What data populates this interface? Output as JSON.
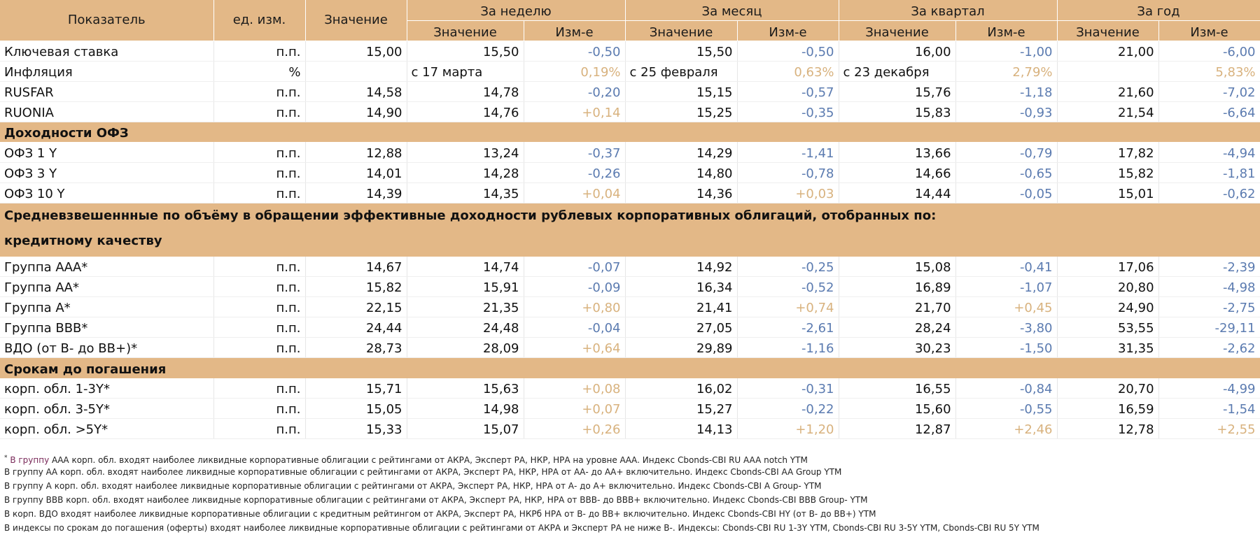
{
  "header": {
    "indicator": "Показатель",
    "unit": "ед. изм.",
    "value": "Значение",
    "groups": [
      "За неделю",
      "За месяц",
      "За квартал",
      "За год"
    ],
    "sub_value": "Значение",
    "sub_change": "Изм-е"
  },
  "rows_top": [
    {
      "name": "Ключевая ставка",
      "unit": "п.п.",
      "value": "15,00",
      "w_val": "15,50",
      "w_chg": "-0,50",
      "w_sign": "neg",
      "m_val": "15,50",
      "m_chg": "-0,50",
      "m_sign": "neg",
      "q_val": "16,00",
      "q_chg": "-1,00",
      "q_sign": "neg",
      "y_val": "21,00",
      "y_chg": "-6,00",
      "y_sign": "neg"
    },
    {
      "name": "Инфляция",
      "unit": "%",
      "value": "",
      "w_val": "с 17 марта",
      "w_chg": "0,19%",
      "w_sign": "pos",
      "m_val": "с 25 февраля",
      "m_chg": "0,63%",
      "m_sign": "pos",
      "q_val": "с 23 декабря",
      "q_chg": "2,79%",
      "q_sign": "pos",
      "y_val": "",
      "y_chg": "5,83%",
      "y_sign": "pos",
      "text_values": true
    },
    {
      "name": "RUSFAR",
      "unit": "п.п.",
      "value": "14,58",
      "w_val": "14,78",
      "w_chg": "-0,20",
      "w_sign": "neg",
      "m_val": "15,15",
      "m_chg": "-0,57",
      "m_sign": "neg",
      "q_val": "15,76",
      "q_chg": "-1,18",
      "q_sign": "neg",
      "y_val": "21,60",
      "y_chg": "-7,02",
      "y_sign": "neg"
    },
    {
      "name": "RUONIA",
      "unit": "п.п.",
      "value": "14,90",
      "w_val": "14,76",
      "w_chg": "+0,14",
      "w_sign": "pos",
      "m_val": "15,25",
      "m_chg": "-0,35",
      "m_sign": "neg",
      "q_val": "15,83",
      "q_chg": "-0,93",
      "q_sign": "neg",
      "y_val": "21,54",
      "y_chg": "-6,64",
      "y_sign": "neg"
    }
  ],
  "section_ofz": "Доходности ОФЗ",
  "rows_ofz": [
    {
      "name": "ОФЗ 1 Y",
      "unit": "п.п.",
      "value": "12,88",
      "w_val": "13,24",
      "w_chg": "-0,37",
      "w_sign": "neg",
      "m_val": "14,29",
      "m_chg": "-1,41",
      "m_sign": "neg",
      "q_val": "13,66",
      "q_chg": "-0,79",
      "q_sign": "neg",
      "y_val": "17,82",
      "y_chg": "-4,94",
      "y_sign": "neg"
    },
    {
      "name": "ОФЗ 3 Y",
      "unit": "п.п.",
      "value": "14,01",
      "w_val": "14,28",
      "w_chg": "-0,26",
      "w_sign": "neg",
      "m_val": "14,80",
      "m_chg": "-0,78",
      "m_sign": "neg",
      "q_val": "14,66",
      "q_chg": "-0,65",
      "q_sign": "neg",
      "y_val": "15,82",
      "y_chg": "-1,81",
      "y_sign": "neg"
    },
    {
      "name": "ОФЗ 10 Y",
      "unit": "п.п.",
      "value": "14,39",
      "w_val": "14,35",
      "w_chg": "+0,04",
      "w_sign": "pos",
      "m_val": "14,36",
      "m_chg": "+0,03",
      "m_sign": "pos",
      "q_val": "14,44",
      "q_chg": "-0,05",
      "q_sign": "neg",
      "y_val": "15,01",
      "y_chg": "-0,62",
      "y_sign": "neg"
    }
  ],
  "section_corp_line1": "Средневзвешеннные по объёму в обращении эффективные доходности рублевых корпоративных облигаций, отобранных по:",
  "section_corp_line2": "кредитному качеству",
  "rows_credit": [
    {
      "name": "Группа ААА*",
      "unit": "п.п.",
      "value": "14,67",
      "w_val": "14,74",
      "w_chg": "-0,07",
      "w_sign": "neg",
      "m_val": "14,92",
      "m_chg": "-0,25",
      "m_sign": "neg",
      "q_val": "15,08",
      "q_chg": "-0,41",
      "q_sign": "neg",
      "y_val": "17,06",
      "y_chg": "-2,39",
      "y_sign": "neg"
    },
    {
      "name": "Группа АА*",
      "unit": "п.п.",
      "value": "15,82",
      "w_val": "15,91",
      "w_chg": "-0,09",
      "w_sign": "neg",
      "m_val": "16,34",
      "m_chg": "-0,52",
      "m_sign": "neg",
      "q_val": "16,89",
      "q_chg": "-1,07",
      "q_sign": "neg",
      "y_val": "20,80",
      "y_chg": "-4,98",
      "y_sign": "neg"
    },
    {
      "name": "Группа А*",
      "unit": "п.п.",
      "value": "22,15",
      "w_val": "21,35",
      "w_chg": "+0,80",
      "w_sign": "pos",
      "m_val": "21,41",
      "m_chg": "+0,74",
      "m_sign": "pos",
      "q_val": "21,70",
      "q_chg": "+0,45",
      "q_sign": "pos",
      "y_val": "24,90",
      "y_chg": "-2,75",
      "y_sign": "neg"
    },
    {
      "name": "Группа ВВВ*",
      "unit": "п.п.",
      "value": "24,44",
      "w_val": "24,48",
      "w_chg": "-0,04",
      "w_sign": "neg",
      "m_val": "27,05",
      "m_chg": "-2,61",
      "m_sign": "neg",
      "q_val": "28,24",
      "q_chg": "-3,80",
      "q_sign": "neg",
      "y_val": "53,55",
      "y_chg": "-29,11",
      "y_sign": "neg"
    },
    {
      "name": "ВДО (от В- до ВВ+)*",
      "unit": "п.п.",
      "value": "28,73",
      "w_val": "28,09",
      "w_chg": "+0,64",
      "w_sign": "pos",
      "m_val": "29,89",
      "m_chg": "-1,16",
      "m_sign": "neg",
      "q_val": "30,23",
      "q_chg": "-1,50",
      "q_sign": "neg",
      "y_val": "31,35",
      "y_chg": "-2,62",
      "y_sign": "neg"
    }
  ],
  "section_maturity": "Срокам до погашения",
  "rows_maturity": [
    {
      "name": "корп. обл. 1-3Y*",
      "unit": "п.п.",
      "value": "15,71",
      "w_val": "15,63",
      "w_chg": "+0,08",
      "w_sign": "pos",
      "m_val": "16,02",
      "m_chg": "-0,31",
      "m_sign": "neg",
      "q_val": "16,55",
      "q_chg": "-0,84",
      "q_sign": "neg",
      "y_val": "20,70",
      "y_chg": "-4,99",
      "y_sign": "neg"
    },
    {
      "name": "корп. обл. 3-5Y*",
      "unit": "п.п.",
      "value": "15,05",
      "w_val": "14,98",
      "w_chg": "+0,07",
      "w_sign": "pos",
      "m_val": "15,27",
      "m_chg": "-0,22",
      "m_sign": "neg",
      "q_val": "15,60",
      "q_chg": "-0,55",
      "q_sign": "neg",
      "y_val": "16,59",
      "y_chg": "-1,54",
      "y_sign": "neg"
    },
    {
      "name": "корп. обл. >5Y*",
      "unit": "п.п.",
      "value": "15,33",
      "w_val": "15,07",
      "w_chg": "+0,26",
      "w_sign": "pos",
      "m_val": "14,13",
      "m_chg": "+1,20",
      "m_sign": "pos",
      "q_val": "12,87",
      "q_chg": "+2,46",
      "q_sign": "pos",
      "y_val": "12,78",
      "y_chg": "+2,55",
      "y_sign": "pos"
    }
  ],
  "footnotes": {
    "first_mark": "*",
    "first_lead": "В группу",
    "first_rest": " ААА корп. обл. входят наиболее ликвидные корпоративные облигации с рейтингами от АКРА, Эксперт РА, НКР, НРА на уровне ААА. Индекс Cbonds-CBI RU AAA notch YTM",
    "lines": [
      "В группу АА корп. обл. входят наиболее ликвидные корпоративные облигации с рейтингами от АКРА, Эксперт РА, НКР, НРА от АА- до АА+ включительно.  Индекс Cbonds-CBI AA Group YTM",
      "В группу А корп. обл. входят наиболее ликвидные корпоративные облигации с рейтингами от АКРА, Эксперт РА, НКР, НРА от А- до А+ включительно.  Индекс Cbonds-CBI A Group- YTM",
      "В группу ВВВ корп. обл. входят наиболее ликвидные корпоративные облигации с рейтингами от АКРА, Эксперт РА, НКР, НРА от ВВВ- до ВВВ+ включительно.  Индекс Cbonds-CBI BBB Group- YTM",
      "В корп. ВДО входят наиболее ликвидные корпоративные облигации с кредитным рейтингом от АКРА, Эксперт РА, НКРб НРА от В- до ВВ+ включительно. Индекс  Cbonds-CBI HY (от B- до BB+)  YTM",
      "В индексы по срокам до погашения (оферты) входят наиболее ликвидные корпоративные облигации с рейтингами от АКРА и Эксперт РА не ниже В-. Индексы:  Cbonds-CBI RU 1-3Y YTM, Cbonds-CBI RU 3-5Y YTM, Cbonds-CBI RU 5Y YTM"
    ]
  }
}
